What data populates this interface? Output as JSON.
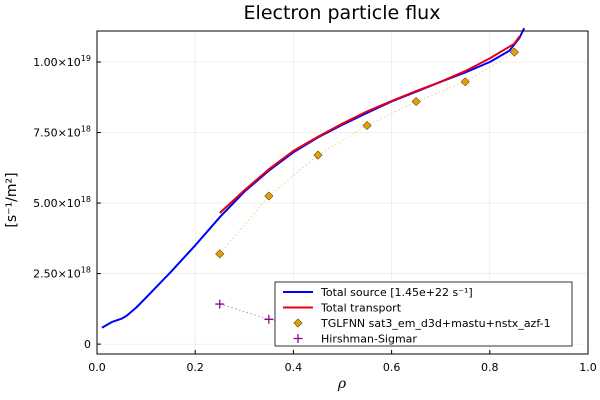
{
  "chart_data": {
    "type": "line",
    "title": "Electron particle flux",
    "xlabel": "ρ",
    "ylabel": "[s⁻¹/m²]",
    "xlim": [
      0.0,
      1.0
    ],
    "ylim": [
      -3.5e+17,
      1.11e+19
    ],
    "x_ticks": [
      {
        "value": 0.0,
        "label": "0.0"
      },
      {
        "value": 0.2,
        "label": "0.2"
      },
      {
        "value": 0.4,
        "label": "0.4"
      },
      {
        "value": 0.6,
        "label": "0.6"
      },
      {
        "value": 0.8,
        "label": "0.8"
      },
      {
        "value": 1.0,
        "label": "1.0"
      }
    ],
    "y_ticks": [
      {
        "value": 0,
        "mantissa": "0",
        "exponent": ""
      },
      {
        "value": 2.5e+18,
        "mantissa": "2.50×10",
        "exponent": "18"
      },
      {
        "value": 5e+18,
        "mantissa": "5.00×10",
        "exponent": "18"
      },
      {
        "value": 7.5e+18,
        "mantissa": "7.50×10",
        "exponent": "18"
      },
      {
        "value": 1e+19,
        "mantissa": "1.00×10",
        "exponent": "19"
      }
    ],
    "grid": true,
    "legend_position": "bottom-right",
    "series": [
      {
        "name": "Total source [1.45e+22 s⁻¹]",
        "kind": "line",
        "color": "#0000ff",
        "x": [
          0.01,
          0.03,
          0.05,
          0.06,
          0.08,
          0.1,
          0.15,
          0.2,
          0.25,
          0.3,
          0.35,
          0.4,
          0.45,
          0.5,
          0.55,
          0.6,
          0.65,
          0.7,
          0.75,
          0.8,
          0.84,
          0.86,
          0.87
        ],
        "y": [
          5.8e+17,
          7.8e+17,
          9e+17,
          1e+18,
          1.3e+18,
          1.65e+18,
          2.55e+18,
          3.5e+18,
          4.5e+18,
          5.4e+18,
          6.15e+18,
          6.8e+18,
          7.33e+18,
          7.78e+18,
          8.2e+18,
          8.6e+18,
          8.95e+18,
          9.3e+18,
          9.63e+18,
          1e+19,
          1.04e+19,
          1.085e+19,
          1.12e+19
        ]
      },
      {
        "name": "Total transport",
        "kind": "line",
        "color": "#e3000f",
        "x": [
          0.25,
          0.3,
          0.35,
          0.4,
          0.45,
          0.5,
          0.55,
          0.6,
          0.65,
          0.7,
          0.75,
          0.8,
          0.85,
          0.86
        ],
        "y": [
          4.65e+18,
          5.45e+18,
          6.2e+18,
          6.85e+18,
          7.35e+18,
          7.82e+18,
          8.25e+18,
          8.62e+18,
          8.97e+18,
          9.3e+18,
          9.68e+18,
          1.013e+19,
          1.065e+19,
          1.09e+19
        ]
      },
      {
        "name": "TGLFNN sat3_em_d3d+mastu+nstx_azf-1",
        "kind": "scatter-diamond",
        "color": "#e69f00",
        "x": [
          0.25,
          0.35,
          0.45,
          0.55,
          0.65,
          0.75,
          0.85
        ],
        "y": [
          3.2e+18,
          5.25e+18,
          6.7e+18,
          7.75e+18,
          8.6e+18,
          9.3e+18,
          1.035e+19
        ]
      },
      {
        "name": "Hirshman-Sigmar",
        "kind": "scatter-cross",
        "color": "#8b0a8b",
        "x": [
          0.25,
          0.35,
          0.45,
          0.55,
          0.65,
          0.75,
          0.85
        ],
        "y": [
          1.42e+18,
          8.8e+17,
          6.3e+17,
          4.8e+17,
          4.3e+17,
          4.2e+17,
          4.2e+17
        ]
      }
    ]
  }
}
